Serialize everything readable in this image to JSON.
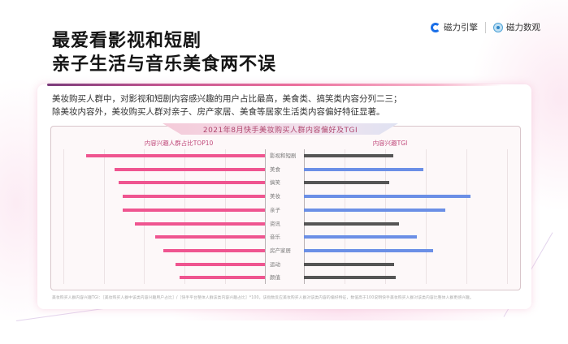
{
  "header": {
    "title_line1": "最爱看影视和短剧",
    "title_line2": "亲子生活与音乐美食两不误"
  },
  "logos": [
    {
      "name": "磁力引擎",
      "icon": "cili-engine-logo-icon"
    },
    {
      "name": "磁力数观",
      "icon": "cili-shuguan-logo-icon"
    }
  ],
  "description": {
    "line1": "美妆购买人群中，对影视和短剧内容感兴趣的用户占比最高，美食类、搞笑类内容分列二三；",
    "line2": "除美妆内容外，美妆购买人群对亲子、房产家居、美食等居家生活类内容偏好特征显著。"
  },
  "footnote": "美妆购买人群内容兴趣TGI：［美妆购买人群中该类内容兴趣用户占比］/［快手平台整体人群该类内容兴趣占比］*100，该指数反应美妆购买人群对该类内容的偏好特征，数值高于100说明快手美妆购买人群对该类内容比整体人群更感兴趣。",
  "colors": {
    "pink_bar": "#ef5590",
    "blue_bar": "#6b8fe6",
    "gray_bar": "#555555",
    "title_accent": "#b0476f"
  },
  "chart_data": {
    "type": "bar",
    "title": "2021年8月快手美妆购买人群内容偏好及TGI",
    "categories": [
      "影视和短剧",
      "美食",
      "搞笑",
      "美妆",
      "亲子",
      "资讯",
      "音乐",
      "房产家居",
      "运动",
      "颜值"
    ],
    "series": [
      {
        "name": "内容兴趣人群占比TOP10",
        "orientation": "horizontal-left",
        "color": "#ef5590",
        "values_relative": [
          44,
          37,
          36,
          35,
          35,
          32,
          27,
          25,
          22,
          21
        ],
        "note": "relative bar lengths (no axis labels shown); 5 gridline intervals"
      },
      {
        "name": "内容兴趣TGI",
        "orientation": "horizontal-right",
        "colors_per_bar": [
          "#555555",
          "#6b8fe6",
          "#555555",
          "#6b8fe6",
          "#6b8fe6",
          "#555555",
          "#6b8fe6",
          "#6b8fe6",
          "#555555",
          "#555555"
        ],
        "values_relative": [
          110,
          147,
          105,
          205,
          174,
          117,
          139,
          159,
          111,
          113
        ],
        "note": "relative bar lengths (no axis labels shown); blue bars highlight TGI above-average categories"
      }
    ],
    "subtitle_left": "内容兴趣人群占比TOP10",
    "subtitle_right": "内容兴趣TGI",
    "xlabel": "",
    "ylabel": "",
    "grid": true,
    "legend": "none"
  }
}
